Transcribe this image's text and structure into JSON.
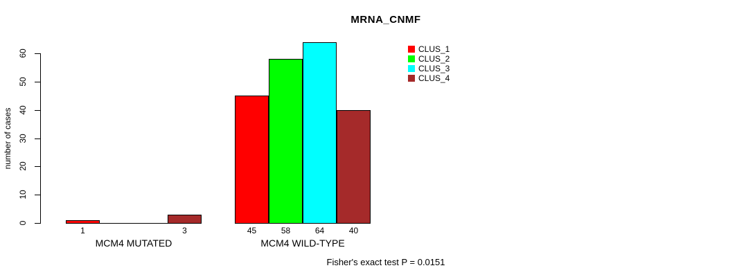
{
  "chart_data": {
    "type": "bar",
    "title": "MRNA_CNMF",
    "xlabel": "",
    "ylabel": "number of cases",
    "ylim": [
      0,
      64
    ],
    "yticks": [
      0,
      10,
      20,
      30,
      40,
      50,
      60
    ],
    "grid": false,
    "legend_position": "top-right",
    "legend": [
      {
        "name": "CLUS_1",
        "color": "#ff0000"
      },
      {
        "name": "CLUS_2",
        "color": "#00ff00"
      },
      {
        "name": "CLUS_3",
        "color": "#00ffff"
      },
      {
        "name": "CLUS_4",
        "color": "#a52a2a"
      }
    ],
    "groups": [
      {
        "label": "MCM4 MUTATED",
        "values": [
          1,
          0,
          0,
          3
        ],
        "bar_labels": [
          "1",
          "",
          "",
          "3"
        ]
      },
      {
        "label": "MCM4 WILD-TYPE",
        "values": [
          45,
          58,
          64,
          40
        ],
        "bar_labels": [
          "45",
          "58",
          "64",
          "40"
        ]
      }
    ],
    "series": [
      {
        "name": "CLUS_1",
        "values": [
          1,
          45
        ]
      },
      {
        "name": "CLUS_2",
        "values": [
          0,
          58
        ]
      },
      {
        "name": "CLUS_3",
        "values": [
          0,
          64
        ]
      },
      {
        "name": "CLUS_4",
        "values": [
          3,
          40
        ]
      }
    ],
    "annotation": "Fisher's exact test P = 0.0151"
  },
  "colors": {
    "background": "#ffffff",
    "axis": "#000000",
    "text": "#000000"
  }
}
